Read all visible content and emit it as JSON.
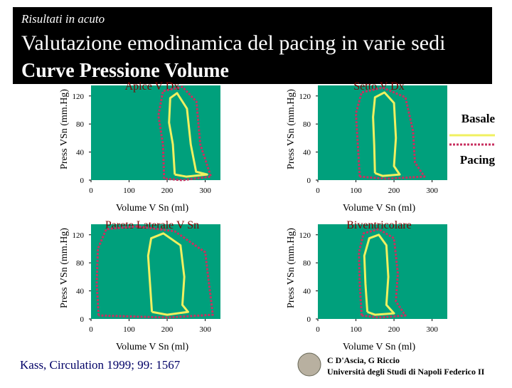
{
  "header": {
    "subtitle": "Risultati in acuto",
    "title": "Valutazione emodinamica del pacing in varie sedi",
    "title2": "Curve Pressione Volume"
  },
  "chart_data": [
    {
      "type": "line",
      "title": "Apice V Dx",
      "xlabel": "Volume V Sn (ml)",
      "ylabel": "Press  VSn (mm.Hg)",
      "xlim": [
        0,
        340
      ],
      "ylim": [
        0,
        135
      ],
      "xticks": [
        0,
        100,
        200,
        300
      ],
      "yticks": [
        0,
        40,
        80,
        120
      ],
      "series": [
        {
          "name": "Basale",
          "color": "#f0f060",
          "x": [
            220,
            215,
            205,
            208,
            226,
            252,
            262,
            276,
            305,
            250,
            220
          ],
          "values": [
            8,
            51,
            82,
            117,
            124,
            102,
            51,
            12,
            8,
            5,
            8
          ]
        },
        {
          "name": "Pacing",
          "color": "#c83060",
          "x": [
            192,
            189,
            177,
            189,
            240,
            277,
            287,
            315,
            240,
            192
          ],
          "values": [
            2,
            51,
            92,
            127,
            133,
            112,
            51,
            5,
            0,
            2
          ]
        }
      ]
    },
    {
      "type": "line",
      "title": "Setto V Dx",
      "xlabel": "Volume V Sn (ml)",
      "ylabel": "Press  VSn (mm.Hg)",
      "xlim": [
        0,
        340
      ],
      "ylim": [
        0,
        135
      ],
      "xticks": [
        0,
        100,
        200,
        300
      ],
      "yticks": [
        0,
        40,
        80,
        120
      ],
      "series": [
        {
          "name": "Basale",
          "color": "#f0f060",
          "x": [
            150,
            148,
            145,
            150,
            175,
            200,
            205,
            200,
            215,
            170,
            150
          ],
          "values": [
            10,
            50,
            90,
            118,
            125,
            110,
            60,
            20,
            8,
            6,
            10
          ]
        },
        {
          "name": "Pacing",
          "color": "#c83060",
          "x": [
            110,
            105,
            100,
            115,
            170,
            230,
            250,
            255,
            280,
            180,
            110
          ],
          "values": [
            5,
            50,
            95,
            125,
            132,
            118,
            70,
            25,
            5,
            2,
            5
          ]
        }
      ]
    },
    {
      "type": "line",
      "title": "Parete Laterale V Sn",
      "xlabel": "Volume V Sn (ml)",
      "ylabel": "Press  VSn (mm.Hg)",
      "xlim": [
        0,
        340
      ],
      "ylim": [
        0,
        135
      ],
      "xticks": [
        0,
        100,
        200,
        300
      ],
      "yticks": [
        0,
        40,
        80,
        120
      ],
      "series": [
        {
          "name": "Basale",
          "color": "#f0f060",
          "x": [
            160,
            155,
            150,
            158,
            190,
            235,
            245,
            240,
            255,
            200,
            160
          ],
          "values": [
            10,
            50,
            90,
            115,
            122,
            105,
            60,
            20,
            10,
            6,
            10
          ]
        },
        {
          "name": "Pacing",
          "color": "#c83060",
          "x": [
            20,
            15,
            18,
            40,
            120,
            220,
            300,
            310,
            320,
            200,
            20
          ],
          "values": [
            5,
            50,
            100,
            128,
            132,
            125,
            95,
            50,
            6,
            2,
            5
          ]
        }
      ]
    },
    {
      "type": "line",
      "title": "Biventricolare",
      "xlabel": "Volume V Sn (ml)",
      "ylabel": "Press  VSn (mm.Hg)",
      "xlim": [
        0,
        340
      ],
      "ylim": [
        0,
        135
      ],
      "xticks": [
        0,
        100,
        200,
        300
      ],
      "yticks": [
        0,
        40,
        80,
        120
      ],
      "series": [
        {
          "name": "Basale",
          "color": "#f0f060",
          "x": [
            130,
            125,
            122,
            135,
            160,
            180,
            185,
            180,
            200,
            150,
            130
          ],
          "values": [
            10,
            50,
            90,
            115,
            120,
            105,
            60,
            20,
            8,
            6,
            10
          ]
        },
        {
          "name": "Pacing",
          "color": "#c83060",
          "x": [
            115,
            110,
            108,
            120,
            160,
            200,
            210,
            205,
            230,
            160,
            115
          ],
          "values": [
            5,
            50,
            95,
            122,
            128,
            115,
            65,
            25,
            5,
            2,
            5
          ]
        }
      ]
    }
  ],
  "footer": {
    "reference": "Kass, Circulation 1999; 99: 1567",
    "authors": "C D'Ascia, G Riccio",
    "institution": "Università degli Studi di Napoli Federico II"
  }
}
